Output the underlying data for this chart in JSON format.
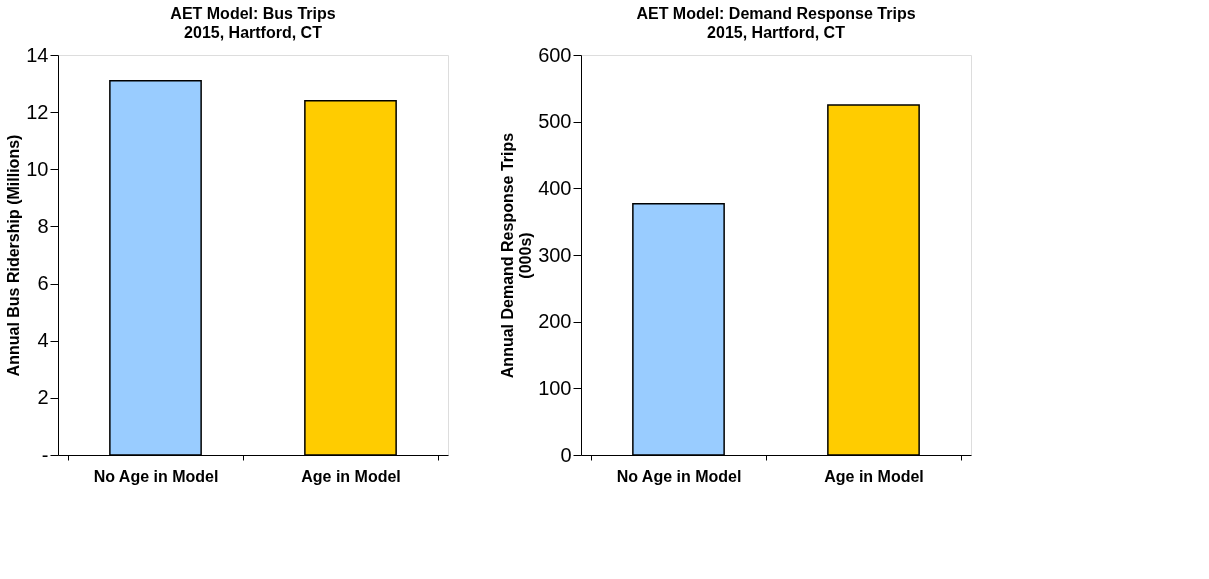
{
  "chart_data": [
    {
      "type": "bar",
      "title": "AET Model: Bus Trips",
      "subtitle": "2015, Hartford, CT",
      "ylabel": "Annual Bus Ridership (Millions)",
      "categories": [
        "No Age in Model",
        "Age in Model"
      ],
      "values": [
        13.1,
        12.4
      ],
      "colors": [
        "#99ccff",
        "#ffcc00"
      ],
      "ylim": [
        0,
        14
      ],
      "yticks": [
        {
          "value": 0,
          "label": "-"
        },
        2,
        4,
        6,
        8,
        10,
        12,
        14
      ]
    },
    {
      "type": "bar",
      "title": "AET Model: Demand Response Trips",
      "subtitle": "2015, Hartford, CT",
      "ylabel": "Annual Demand Response Trips\n(000s)",
      "categories": [
        "No Age in Model",
        "Age in Model"
      ],
      "values": [
        377,
        525
      ],
      "colors": [
        "#99ccff",
        "#ffcc00"
      ],
      "ylim": [
        0,
        600
      ],
      "yticks": [
        0,
        100,
        200,
        300,
        400,
        500,
        600
      ]
    }
  ]
}
